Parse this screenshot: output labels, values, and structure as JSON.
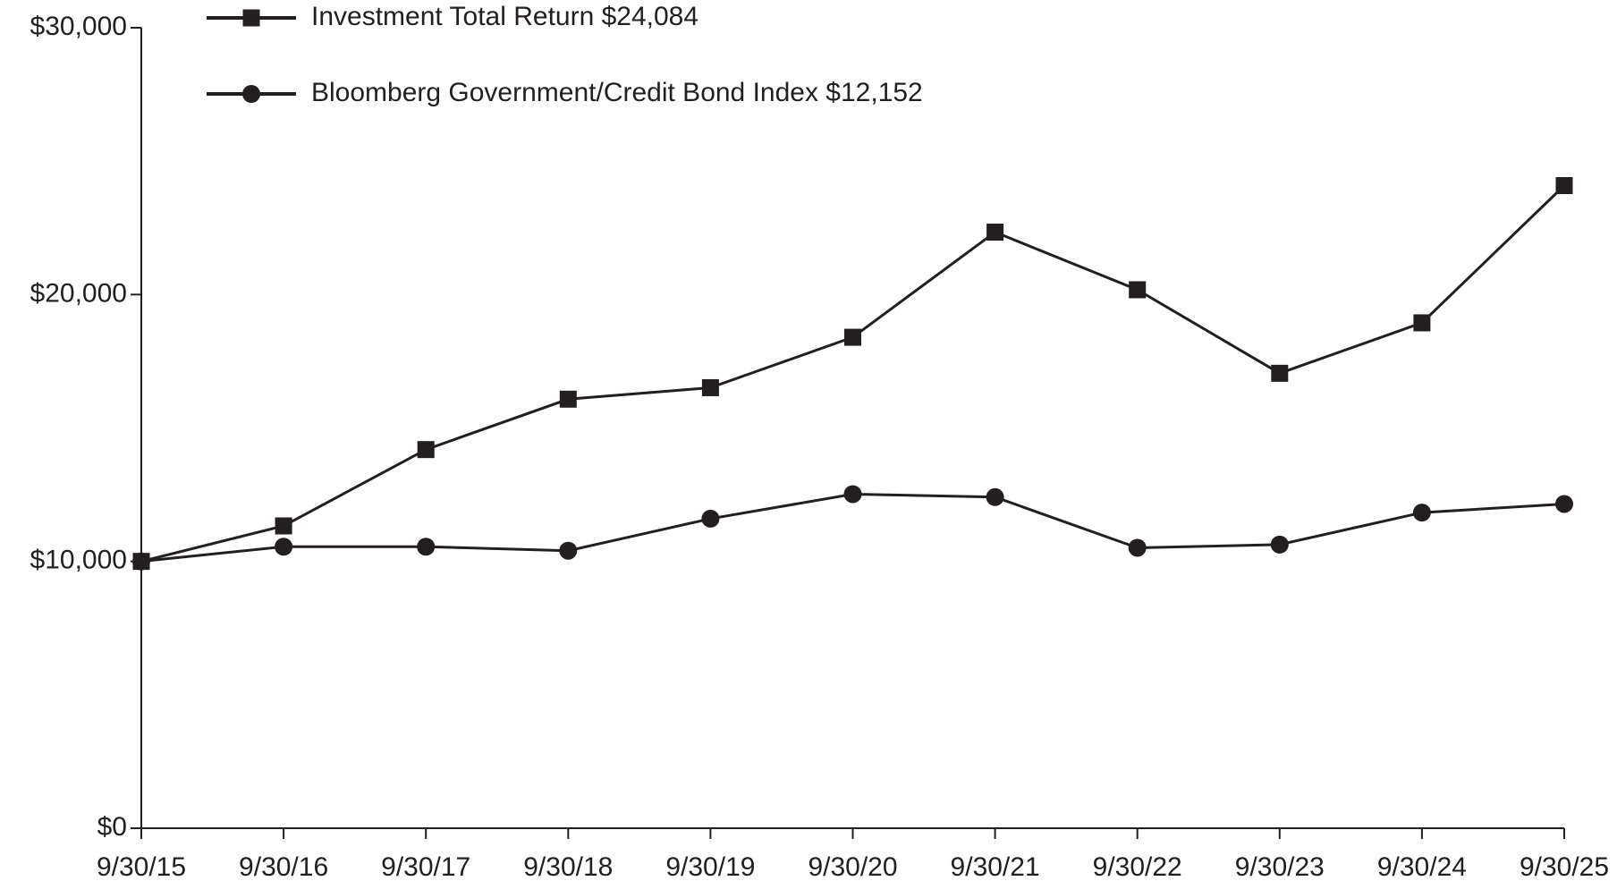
{
  "chart_data": {
    "type": "line",
    "categories": [
      "9/30/15",
      "9/30/16",
      "9/30/17",
      "9/30/18",
      "9/30/19",
      "9/30/20",
      "9/30/21",
      "9/30/22",
      "9/30/23",
      "9/30/24",
      "9/30/25"
    ],
    "series": [
      {
        "name": "Investment Total Return $24,084",
        "color": "#231f20",
        "marker": "square",
        "values": [
          10000,
          11330,
          14190,
          16080,
          16510,
          18400,
          22340,
          20180,
          17050,
          18940,
          24084
        ]
      },
      {
        "name": "Bloomberg Government/Credit Bond Index $12,152",
        "color": "#231f20",
        "marker": "circle",
        "values": [
          10000,
          10550,
          10550,
          10400,
          11600,
          12520,
          12410,
          10510,
          10630,
          11830,
          12152
        ]
      }
    ],
    "ylim": [
      0,
      30000
    ],
    "yticks": [
      {
        "value": 0,
        "label": "$0"
      },
      {
        "value": 10000,
        "label": "$10,000"
      },
      {
        "value": 20000,
        "label": "$20,000"
      },
      {
        "value": 30000,
        "label": "$30,000"
      }
    ],
    "grid": false,
    "legend": "top-left"
  }
}
